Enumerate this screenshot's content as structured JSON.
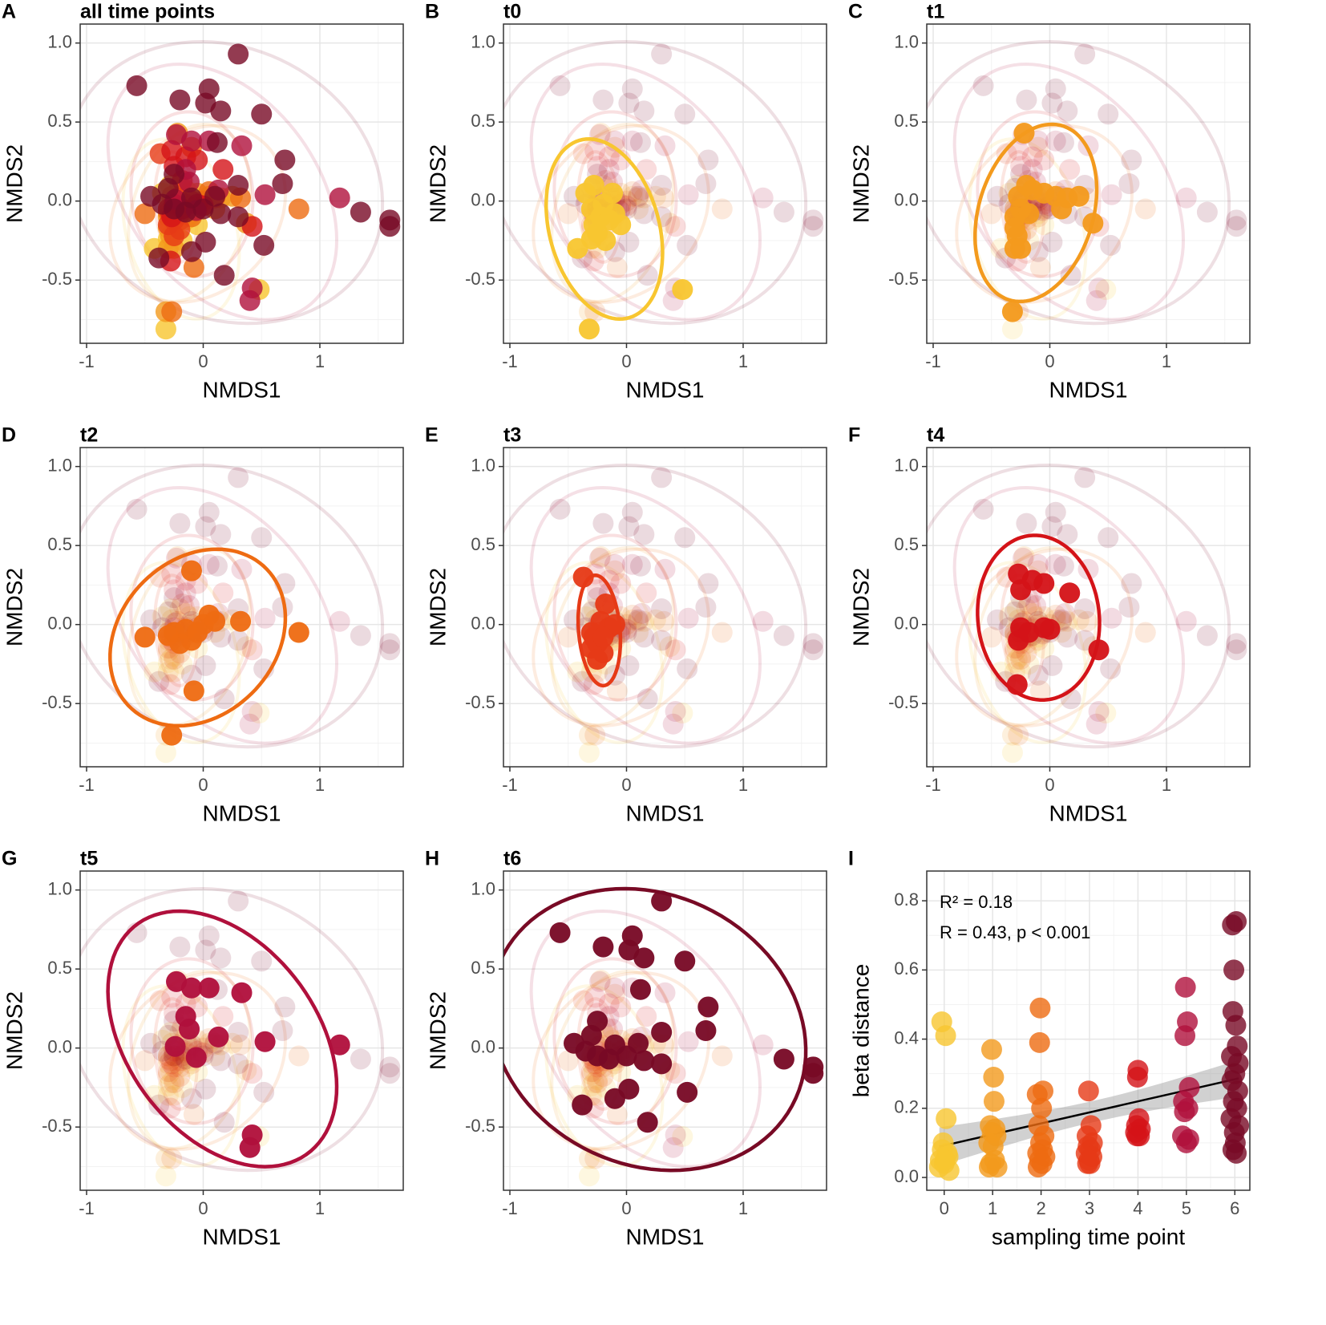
{
  "chart_data": [
    {
      "type": "nmds",
      "label": "A",
      "title": "all time points",
      "xlabel": "NMDS1",
      "ylabel": "NMDS2",
      "xlim": [
        -1.055,
        1.715
      ],
      "ylim": [
        -0.9,
        1.12
      ],
      "xticks": [
        -1,
        0,
        1
      ],
      "yticks": [
        -0.5,
        {
          "value": 0,
          "label": "0.0"
        },
        0.5,
        {
          "value": 1,
          "label": "1.0"
        }
      ],
      "grid": true,
      "series": [
        {
          "name": "t0",
          "color": "#f8c630",
          "x": [
            -0.3,
            -0.22,
            -0.15,
            -0.28,
            -0.2,
            -0.25,
            -0.18,
            -0.3,
            -0.1,
            -0.35,
            0.48,
            -0.32,
            -0.28,
            -0.12,
            -0.05,
            -0.42
          ],
          "values": [
            -0.05,
            -0.1,
            -0.12,
            -0.15,
            -0.02,
            -0.2,
            -0.25,
            -0.24,
            -0.08,
            0.05,
            -0.56,
            -0.81,
            0.1,
            0.05,
            -0.15,
            -0.3
          ]
        },
        {
          "name": "t1",
          "color": "#f39a1d",
          "x": [
            -0.22,
            -0.27,
            -0.2,
            -0.15,
            -0.05,
            0.05,
            0.15,
            0.25,
            -0.25,
            -0.3,
            -0.28,
            -0.3,
            -0.25,
            0.37,
            -0.32,
            -0.18,
            0.1,
            -0.3
          ],
          "values": [
            0.43,
            0.03,
            0.1,
            0.07,
            0.05,
            0.03,
            0.02,
            0.03,
            -0.05,
            -0.1,
            -0.22,
            -0.3,
            -0.3,
            -0.14,
            -0.7,
            -0.08,
            -0.05,
            -0.17
          ]
        },
        {
          "name": "t2",
          "color": "#ee6b12",
          "x": [
            -0.5,
            -0.1,
            0.05,
            0.32,
            0.82,
            -0.08,
            -0.27,
            -0.25,
            -0.15,
            -0.1,
            0,
            -0.2,
            -0.3,
            0.1,
            -0.05
          ],
          "values": [
            -0.08,
            0.34,
            0.06,
            0.02,
            -0.05,
            -0.42,
            -0.7,
            -0.05,
            -0.03,
            -0.1,
            0,
            -0.12,
            -0.07,
            0.02,
            -0.05
          ]
        },
        {
          "name": "t3",
          "color": "#e63a17",
          "x": [
            -0.37,
            -0.18,
            -0.3,
            -0.25,
            -0.2,
            -0.28,
            -0.15,
            -0.22,
            -0.1,
            -0.3,
            -0.25,
            -0.2
          ],
          "values": [
            0.3,
            0.13,
            -0.05,
            -0.12,
            -0.18,
            -0.08,
            -0.02,
            0.02,
            0,
            -0.15,
            -0.22,
            -0.08
          ]
        },
        {
          "name": "t4",
          "color": "#d41318",
          "x": [
            -0.27,
            -0.25,
            -0.15,
            -0.05,
            0.17,
            -0.25,
            -0.27,
            0,
            -0.05,
            0.42,
            -0.28,
            -0.18
          ],
          "values": [
            0.32,
            0.22,
            0.28,
            0.26,
            0.2,
            -0.02,
            -0.1,
            -0.03,
            -0.02,
            -0.16,
            -0.38,
            -0.05
          ]
        },
        {
          "name": "t5",
          "color": "#b0103c",
          "x": [
            -0.23,
            -0.1,
            0.05,
            0.33,
            -0.15,
            -0.12,
            -0.24,
            0.13,
            -0.06,
            0.53,
            1.17,
            0.42,
            0.4
          ],
          "values": [
            0.42,
            0.38,
            0.38,
            0.35,
            0.2,
            0.12,
            0.01,
            0.07,
            -0.06,
            0.04,
            0.02,
            -0.55,
            -0.63
          ]
        },
        {
          "name": "t6",
          "color": "#780a25",
          "x": [
            -0.57,
            0.3,
            -0.2,
            0.02,
            0.05,
            0.15,
            0.5,
            0.12,
            0.7,
            0.68,
            -0.25,
            -0.45,
            -0.3,
            -0.35,
            -0.25,
            -0.1,
            0,
            0.1,
            0.3,
            0.3,
            -0.15,
            0.15,
            -0.38,
            -0.1,
            0.02,
            0.52,
            0.18,
            1.35,
            1.6,
            1.6
          ],
          "values": [
            0.73,
            0.93,
            0.64,
            0.62,
            0.71,
            0.57,
            0.55,
            0.37,
            0.26,
            0.11,
            0.17,
            0.03,
            0.08,
            -0.02,
            -0.05,
            0.02,
            -0.05,
            0.03,
            0.1,
            -0.1,
            -0.07,
            -0.08,
            -0.36,
            -0.32,
            -0.26,
            -0.28,
            -0.47,
            -0.07,
            -0.12,
            -0.16
          ]
        }
      ]
    },
    {
      "type": "nmds_highlight",
      "label": "B",
      "xlabel": "NMDS1",
      "ylabel": "NMDS2",
      "xlim": [
        -1.055,
        1.715
      ],
      "ylim": [
        -0.9,
        1.12
      ],
      "xticks": [
        -1,
        0,
        1
      ],
      "yticks": [
        -0.5,
        {
          "value": 0,
          "label": "0.0"
        },
        0.5,
        {
          "value": 1,
          "label": "1.0"
        }
      ],
      "grid": true
    },
    {
      "type": "nmds_highlight",
      "label": "C",
      "xlabel": "NMDS1",
      "ylabel": "NMDS2",
      "xlim": [
        -1.055,
        1.715
      ],
      "ylim": [
        -0.9,
        1.12
      ],
      "xticks": [
        -1,
        0,
        1
      ],
      "yticks": [
        -0.5,
        {
          "value": 0,
          "label": "0.0"
        },
        0.5,
        {
          "value": 1,
          "label": "1.0"
        }
      ],
      "grid": true
    },
    {
      "type": "nmds_highlight",
      "label": "D",
      "xlabel": "NMDS1",
      "ylabel": "NMDS2",
      "xlim": [
        -1.055,
        1.715
      ],
      "ylim": [
        -0.9,
        1.12
      ],
      "xticks": [
        -1,
        0,
        1
      ],
      "yticks": [
        -0.5,
        {
          "value": 0,
          "label": "0.0"
        },
        0.5,
        {
          "value": 1,
          "label": "1.0"
        }
      ],
      "grid": true
    },
    {
      "type": "nmds_highlight",
      "label": "E",
      "xlabel": "NMDS1",
      "ylabel": "NMDS2",
      "xlim": [
        -1.055,
        1.715
      ],
      "ylim": [
        -0.9,
        1.12
      ],
      "xticks": [
        -1,
        0,
        1
      ],
      "yticks": [
        -0.5,
        {
          "value": 0,
          "label": "0.0"
        },
        0.5,
        {
          "value": 1,
          "label": "1.0"
        }
      ],
      "grid": true
    },
    {
      "type": "nmds_highlight",
      "label": "F",
      "xlabel": "NMDS1",
      "ylabel": "NMDS2",
      "xlim": [
        -1.055,
        1.715
      ],
      "ylim": [
        -0.9,
        1.12
      ],
      "xticks": [
        -1,
        0,
        1
      ],
      "yticks": [
        -0.5,
        {
          "value": 0,
          "label": "0.0"
        },
        0.5,
        {
          "value": 1,
          "label": "1.0"
        }
      ],
      "grid": true
    },
    {
      "type": "nmds_highlight",
      "label": "G",
      "xlabel": "NMDS1",
      "ylabel": "NMDS2",
      "xlim": [
        -1.055,
        1.715
      ],
      "ylim": [
        -0.9,
        1.12
      ],
      "xticks": [
        -1,
        0,
        1
      ],
      "yticks": [
        -0.5,
        {
          "value": 0,
          "label": "0.0"
        },
        0.5,
        {
          "value": 1,
          "label": "1.0"
        }
      ],
      "grid": true
    },
    {
      "type": "nmds_highlight",
      "label": "H",
      "xlabel": "NMDS1",
      "ylabel": "NMDS2",
      "xlim": [
        -1.055,
        1.715
      ],
      "ylim": [
        -0.9,
        1.12
      ],
      "xticks": [
        -1,
        0,
        1
      ],
      "yticks": [
        -0.5,
        {
          "value": 0,
          "label": "0.0"
        },
        0.5,
        {
          "value": 1,
          "label": "1.0"
        }
      ],
      "grid": true
    },
    {
      "type": "scatter",
      "label": "I",
      "xlabel": "sampling time point",
      "ylabel": "beta distance",
      "annotations": [
        "R² = 0.18",
        "R = 0.43, p < 0.001"
      ],
      "trendline": true,
      "xlim": [
        -0.36,
        6.31
      ],
      "ylim": [
        -0.037,
        0.886
      ],
      "xticks": [
        0,
        1,
        2,
        3,
        4,
        5,
        6
      ],
      "yticks": [
        {
          "value": 0,
          "label": "0.0"
        },
        0.2,
        0.4,
        0.6,
        0.8
      ],
      "grid": true,
      "series": [
        {
          "color": "#f8c630",
          "x": [
            -0.05,
            0.03,
            0.04,
            -0.02,
            0.06,
            -0.08,
            0.0,
            -0.1,
            0.08,
            0.1,
            -0.04,
            0.02
          ],
          "values": [
            0.45,
            0.41,
            0.17,
            0.1,
            0.07,
            0.05,
            0.04,
            0.03,
            0.06,
            0.02,
            0.08,
            0.05
          ]
        },
        {
          "color": "#f39a1d",
          "x": [
            0.98,
            1.02,
            1.03,
            0.95,
            1.05,
            0.99,
            1.07,
            0.92,
            1.01,
            1.04,
            0.96,
            1.09,
            0.93
          ],
          "values": [
            0.37,
            0.29,
            0.22,
            0.15,
            0.14,
            0.13,
            0.12,
            0.1,
            0.09,
            0.05,
            0.04,
            0.03,
            0.03
          ]
        },
        {
          "color": "#ee6b12",
          "x": [
            1.98,
            1.97,
            2.04,
            1.92,
            2.01,
            1.95,
            2.06,
            1.99,
            2.03,
            1.93,
            2.08,
            1.97,
            2.02,
            1.94
          ],
          "values": [
            0.49,
            0.39,
            0.25,
            0.24,
            0.2,
            0.15,
            0.12,
            0.1,
            0.08,
            0.07,
            0.06,
            0.05,
            0.04,
            0.03
          ]
        },
        {
          "color": "#e63a17",
          "x": [
            2.98,
            3.03,
            2.95,
            3.06,
            2.97,
            3.02,
            2.93,
            3.05,
            2.99,
            3.01,
            2.96
          ],
          "values": [
            0.25,
            0.15,
            0.12,
            0.1,
            0.09,
            0.08,
            0.07,
            0.06,
            0.05,
            0.04,
            0.04
          ]
        },
        {
          "color": "#d41318",
          "x": [
            4,
            3.99,
            4.02,
            3.97,
            4.05,
            3.95,
            4.03,
            3.98
          ],
          "values": [
            0.31,
            0.29,
            0.17,
            0.15,
            0.14,
            0.13,
            0.12,
            0.12
          ]
        },
        {
          "color": "#b0103c",
          "x": [
            4.98,
            5.02,
            4.97,
            5.06,
            4.94,
            5.03,
            4.96,
            4.92,
            5.05,
            5.0
          ],
          "values": [
            0.55,
            0.45,
            0.41,
            0.26,
            0.22,
            0.2,
            0.19,
            0.12,
            0.11,
            0.1
          ]
        },
        {
          "color": "#780a25",
          "x": [
            5.95,
            6.03,
            5.98,
            5.96,
            6.02,
            6.05,
            5.93,
            6.07,
            6.0,
            5.94,
            6.06,
            5.97,
            6.04,
            5.92,
            6.08,
            5.99,
            6.01,
            5.96,
            6.03
          ],
          "values": [
            0.73,
            0.74,
            0.6,
            0.48,
            0.44,
            0.38,
            0.35,
            0.33,
            0.3,
            0.28,
            0.25,
            0.22,
            0.2,
            0.17,
            0.15,
            0.13,
            0.1,
            0.08,
            0.07
          ]
        }
      ]
    }
  ]
}
